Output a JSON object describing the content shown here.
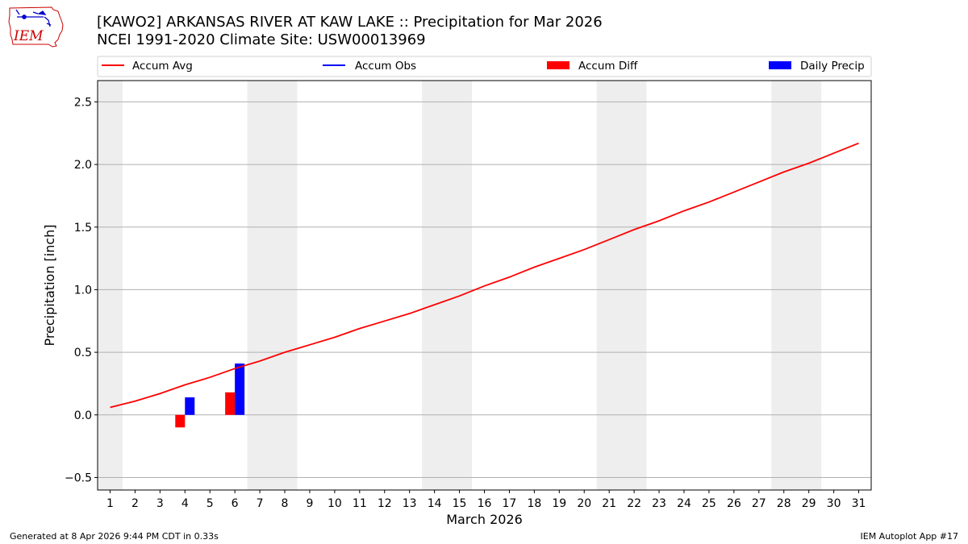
{
  "logo": {
    "text": "IEM",
    "colors": {
      "state_outline": "#cc0000",
      "symbols": "#0000cc",
      "text": "#cc0000"
    }
  },
  "header": {
    "title": "[KAWO2] ARKANSAS RIVER  AT KAW LAKE :: Precipitation for Mar 2026",
    "subtitle": "NCEI 1991-2020 Climate Site: USW00013969"
  },
  "footer": {
    "left": "Generated at 8 Apr 2026 9:44 PM CDT in 0.33s",
    "right": "IEM Autoplot App #17"
  },
  "chart_data": {
    "type": "bar",
    "xlabel": "March 2026",
    "ylabel": "Precipitation [inch]",
    "xlim": [
      0.5,
      31.5
    ],
    "ylim": [
      -0.6,
      2.67
    ],
    "yticks": [
      -0.5,
      0.0,
      0.5,
      1.0,
      1.5,
      2.0,
      2.5
    ],
    "ytick_labels": [
      "−0.5",
      "0.0",
      "0.5",
      "1.0",
      "1.5",
      "2.0",
      "2.5"
    ],
    "days": [
      1,
      2,
      3,
      4,
      5,
      6,
      7,
      8,
      9,
      10,
      11,
      12,
      13,
      14,
      15,
      16,
      17,
      18,
      19,
      20,
      21,
      22,
      23,
      24,
      25,
      26,
      27,
      28,
      29,
      30,
      31
    ],
    "grid": "horizontal",
    "legend_placement": "top, above plot",
    "weekend_shading": [
      [
        0.5,
        1.5
      ],
      [
        6.5,
        8.5
      ],
      [
        13.5,
        15.5
      ],
      [
        20.5,
        22.5
      ],
      [
        27.5,
        29.5
      ]
    ],
    "colors": {
      "accum_avg": "#ff0000",
      "accum_obs": "#0000ff",
      "accum_diff": "#ff0000",
      "daily_precip": "#0000ff",
      "weekend": "#eeeeee",
      "grid": "#b0b0b0"
    },
    "series": [
      {
        "name": "Accum Avg",
        "kind": "line",
        "values": [
          0.06,
          0.11,
          0.17,
          0.24,
          0.3,
          0.37,
          0.43,
          0.5,
          0.56,
          0.62,
          0.69,
          0.75,
          0.81,
          0.88,
          0.95,
          1.03,
          1.1,
          1.18,
          1.25,
          1.32,
          1.4,
          1.48,
          1.55,
          1.63,
          1.7,
          1.78,
          1.86,
          1.94,
          2.01,
          2.09,
          2.17
        ]
      },
      {
        "name": "Accum Obs",
        "kind": "line",
        "values": []
      },
      {
        "name": "Accum Diff",
        "kind": "bar",
        "offset": "left",
        "points": [
          {
            "day": 4,
            "value": -0.1
          },
          {
            "day": 6,
            "value": 0.18
          }
        ]
      },
      {
        "name": "Daily Precip",
        "kind": "bar",
        "offset": "right",
        "points": [
          {
            "day": 4,
            "value": 0.14
          },
          {
            "day": 6,
            "value": 0.41
          }
        ]
      }
    ]
  }
}
